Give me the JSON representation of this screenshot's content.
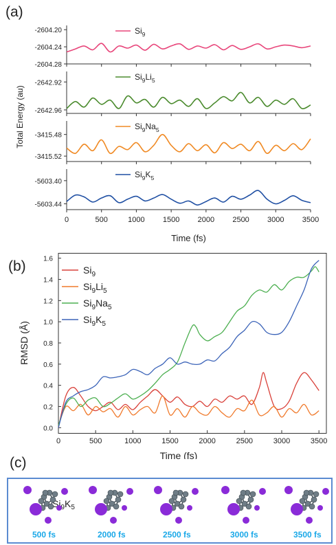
{
  "panel_labels": {
    "a": "(a)",
    "b": "(b)",
    "c": "(c)"
  },
  "panel_c": {
    "molecule_label": "Si9K5",
    "snapshots": [
      "500 fs",
      "2000 fs",
      "2500 fs",
      "3000 fs",
      "3500 fs"
    ],
    "colors": {
      "si_atom": "#6f7d86",
      "k_atom": "#8a2bd8",
      "frame": "#5b8bd1",
      "time_text": "#1aa8e8"
    }
  },
  "chart_data": [
    {
      "type": "line",
      "ylabel": "Total Energy (au)",
      "xlabel": "Time (fs)",
      "xlim": [
        0,
        3500
      ],
      "xticks": [
        "0",
        "500",
        "1000",
        "1500",
        "2000",
        "2500",
        "3000",
        "3500"
      ],
      "subplots": [
        {
          "legend": "Si9",
          "color": "#e8457a",
          "ylim": [
            -2604.28,
            -2604.19
          ],
          "yticks": [
            "-2604.20",
            "-2604.24",
            "-2604.28"
          ],
          "x": [
            0,
            125,
            250,
            375,
            500,
            625,
            750,
            875,
            1000,
            1125,
            1250,
            1375,
            1500,
            1625,
            1750,
            1875,
            2000,
            2125,
            2250,
            2375,
            2500,
            2625,
            2750,
            2875,
            3000,
            3125,
            3250,
            3375,
            3500
          ],
          "y": [
            -2604.252,
            -2604.245,
            -2604.238,
            -2604.247,
            -2604.232,
            -2604.252,
            -2604.238,
            -2604.243,
            -2604.236,
            -2604.248,
            -2604.234,
            -2604.245,
            -2604.238,
            -2604.233,
            -2604.246,
            -2604.238,
            -2604.243,
            -2604.235,
            -2604.247,
            -2604.237,
            -2604.246,
            -2604.24,
            -2604.233,
            -2604.245,
            -2604.24,
            -2604.236,
            -2604.238,
            -2604.242,
            -2604.238
          ]
        },
        {
          "legend": "Si9Li5",
          "color": "#4b8b2e",
          "ylim": [
            -2642.965,
            -2642.905
          ],
          "yticks": [
            "-2642.92",
            "-2642.96"
          ],
          "x": [
            0,
            125,
            250,
            375,
            500,
            625,
            750,
            875,
            1000,
            1125,
            1250,
            1375,
            1500,
            1625,
            1750,
            1875,
            2000,
            2125,
            2250,
            2375,
            2500,
            2625,
            2750,
            2875,
            3000,
            3125,
            3250,
            3375,
            3500
          ],
          "y": [
            -2642.958,
            -2642.948,
            -2642.956,
            -2642.943,
            -2642.952,
            -2642.946,
            -2642.958,
            -2642.94,
            -2642.95,
            -2642.945,
            -2642.956,
            -2642.942,
            -2642.951,
            -2642.946,
            -2642.955,
            -2642.944,
            -2642.958,
            -2642.95,
            -2642.941,
            -2642.947,
            -2642.935,
            -2642.95,
            -2642.942,
            -2642.955,
            -2642.946,
            -2642.952,
            -2642.944,
            -2642.958,
            -2642.953
          ]
        },
        {
          "legend": "Si9Na5",
          "color": "#f08a24",
          "ylim": [
            -3415.53,
            -3415.455
          ],
          "yticks": [
            "-3415.48",
            "-3415.52"
          ],
          "x": [
            0,
            125,
            250,
            375,
            500,
            625,
            750,
            875,
            1000,
            1125,
            1250,
            1375,
            1500,
            1625,
            1750,
            1875,
            2000,
            2125,
            2250,
            2375,
            2500,
            2625,
            2750,
            2875,
            3000,
            3125,
            3250,
            3375,
            3500
          ],
          "y": [
            -3415.505,
            -3415.515,
            -3415.498,
            -3415.51,
            -3415.49,
            -3415.515,
            -3415.502,
            -3415.508,
            -3415.495,
            -3415.512,
            -3415.5,
            -3415.48,
            -3415.5,
            -3415.512,
            -3415.497,
            -3415.51,
            -3415.499,
            -3415.514,
            -3415.495,
            -3415.506,
            -3415.498,
            -3415.51,
            -3415.493,
            -3415.515,
            -3415.5,
            -3415.51,
            -3415.497,
            -3415.508,
            -3415.488
          ]
        },
        {
          "legend": "Si9K5",
          "color": "#1f4fa3",
          "ylim": [
            -5603.45,
            -5603.38
          ],
          "yticks": [
            "-5603.40",
            "-5603.44"
          ],
          "x": [
            0,
            125,
            250,
            375,
            500,
            625,
            750,
            875,
            1000,
            1125,
            1250,
            1375,
            1500,
            1625,
            1750,
            1875,
            2000,
            2125,
            2250,
            2375,
            2500,
            2625,
            2750,
            2875,
            3000,
            3125,
            3250,
            3375,
            3500
          ],
          "y": [
            -5603.436,
            -5603.425,
            -5603.428,
            -5603.437,
            -5603.43,
            -5603.426,
            -5603.438,
            -5603.432,
            -5603.427,
            -5603.435,
            -5603.43,
            -5603.424,
            -5603.432,
            -5603.439,
            -5603.435,
            -5603.442,
            -5603.436,
            -5603.43,
            -5603.437,
            -5603.427,
            -5603.432,
            -5603.425,
            -5603.417,
            -5603.432,
            -5603.44,
            -5603.434,
            -5603.426,
            -5603.434,
            -5603.438
          ]
        }
      ]
    },
    {
      "type": "line",
      "ylabel": "RMSD (Å)",
      "xlabel": "Time (fs)",
      "xlim": [
        0,
        3600
      ],
      "ylim": [
        -0.05,
        1.65
      ],
      "xticks": [
        0,
        500,
        1000,
        1500,
        2000,
        2500,
        3000,
        3500
      ],
      "yticks": [
        "0.0",
        "0.2",
        "0.4",
        "0.6",
        "0.8",
        "1.0",
        "1.2",
        "1.4",
        "1.6"
      ],
      "legend_position": "top-left",
      "series": [
        {
          "name": "Si9",
          "color": "#d9413a",
          "x": [
            0,
            100,
            200,
            300,
            400,
            500,
            600,
            700,
            800,
            900,
            1000,
            1100,
            1200,
            1300,
            1400,
            1500,
            1600,
            1700,
            1800,
            1900,
            2000,
            2100,
            2200,
            2300,
            2400,
            2500,
            2600,
            2700,
            2750,
            2800,
            2900,
            3000,
            3100,
            3200,
            3300,
            3400,
            3500
          ],
          "y": [
            0.0,
            0.3,
            0.38,
            0.3,
            0.2,
            0.16,
            0.2,
            0.24,
            0.17,
            0.22,
            0.17,
            0.24,
            0.3,
            0.36,
            0.3,
            0.24,
            0.29,
            0.22,
            0.2,
            0.25,
            0.2,
            0.27,
            0.24,
            0.3,
            0.27,
            0.3,
            0.22,
            0.38,
            0.52,
            0.42,
            0.2,
            0.18,
            0.25,
            0.42,
            0.52,
            0.45,
            0.35
          ]
        },
        {
          "name": "Si9Li5",
          "color": "#f07a2c",
          "x": [
            0,
            100,
            200,
            300,
            400,
            500,
            600,
            700,
            800,
            900,
            1000,
            1100,
            1200,
            1300,
            1400,
            1500,
            1600,
            1700,
            1800,
            1900,
            2000,
            2100,
            2200,
            2300,
            2400,
            2500,
            2600,
            2700,
            2800,
            2900,
            3000,
            3100,
            3200,
            3300,
            3400,
            3500
          ],
          "y": [
            0.02,
            0.2,
            0.16,
            0.22,
            0.12,
            0.2,
            0.15,
            0.18,
            0.1,
            0.2,
            0.12,
            0.17,
            0.2,
            0.14,
            0.3,
            0.12,
            0.18,
            0.1,
            0.2,
            0.14,
            0.12,
            0.2,
            0.14,
            0.1,
            0.18,
            0.16,
            0.26,
            0.12,
            0.14,
            0.2,
            0.1,
            0.18,
            0.14,
            0.22,
            0.12,
            0.16
          ]
        },
        {
          "name": "Si9Na5",
          "color": "#4caf50",
          "x": [
            0,
            100,
            200,
            300,
            400,
            500,
            600,
            700,
            800,
            900,
            1000,
            1100,
            1200,
            1300,
            1400,
            1500,
            1600,
            1700,
            1800,
            1850,
            1900,
            2000,
            2100,
            2200,
            2300,
            2400,
            2500,
            2600,
            2700,
            2800,
            2900,
            3000,
            3100,
            3200,
            3300,
            3400,
            3450,
            3500
          ],
          "y": [
            0.02,
            0.22,
            0.28,
            0.2,
            0.26,
            0.28,
            0.2,
            0.23,
            0.28,
            0.32,
            0.27,
            0.3,
            0.35,
            0.42,
            0.5,
            0.55,
            0.62,
            0.8,
            0.96,
            0.95,
            0.88,
            0.82,
            0.86,
            0.9,
            1.0,
            1.1,
            1.15,
            1.25,
            1.3,
            1.28,
            1.35,
            1.3,
            1.38,
            1.42,
            1.42,
            1.48,
            1.52,
            1.47
          ]
        },
        {
          "name": "Si9K5",
          "color": "#3b63b8",
          "x": [
            0,
            100,
            200,
            300,
            400,
            500,
            600,
            700,
            800,
            900,
            1000,
            1100,
            1200,
            1300,
            1400,
            1500,
            1600,
            1700,
            1800,
            1900,
            2000,
            2100,
            2200,
            2300,
            2400,
            2500,
            2600,
            2700,
            2800,
            2900,
            3000,
            3100,
            3200,
            3300,
            3400,
            3500
          ],
          "y": [
            0.0,
            0.24,
            0.3,
            0.34,
            0.36,
            0.4,
            0.48,
            0.47,
            0.48,
            0.5,
            0.55,
            0.53,
            0.5,
            0.56,
            0.6,
            0.66,
            0.6,
            0.62,
            0.6,
            0.6,
            0.64,
            0.63,
            0.7,
            0.76,
            0.86,
            0.92,
            1.0,
            0.98,
            0.9,
            0.88,
            0.9,
            1.0,
            1.15,
            1.3,
            1.5,
            1.58
          ]
        }
      ]
    }
  ]
}
